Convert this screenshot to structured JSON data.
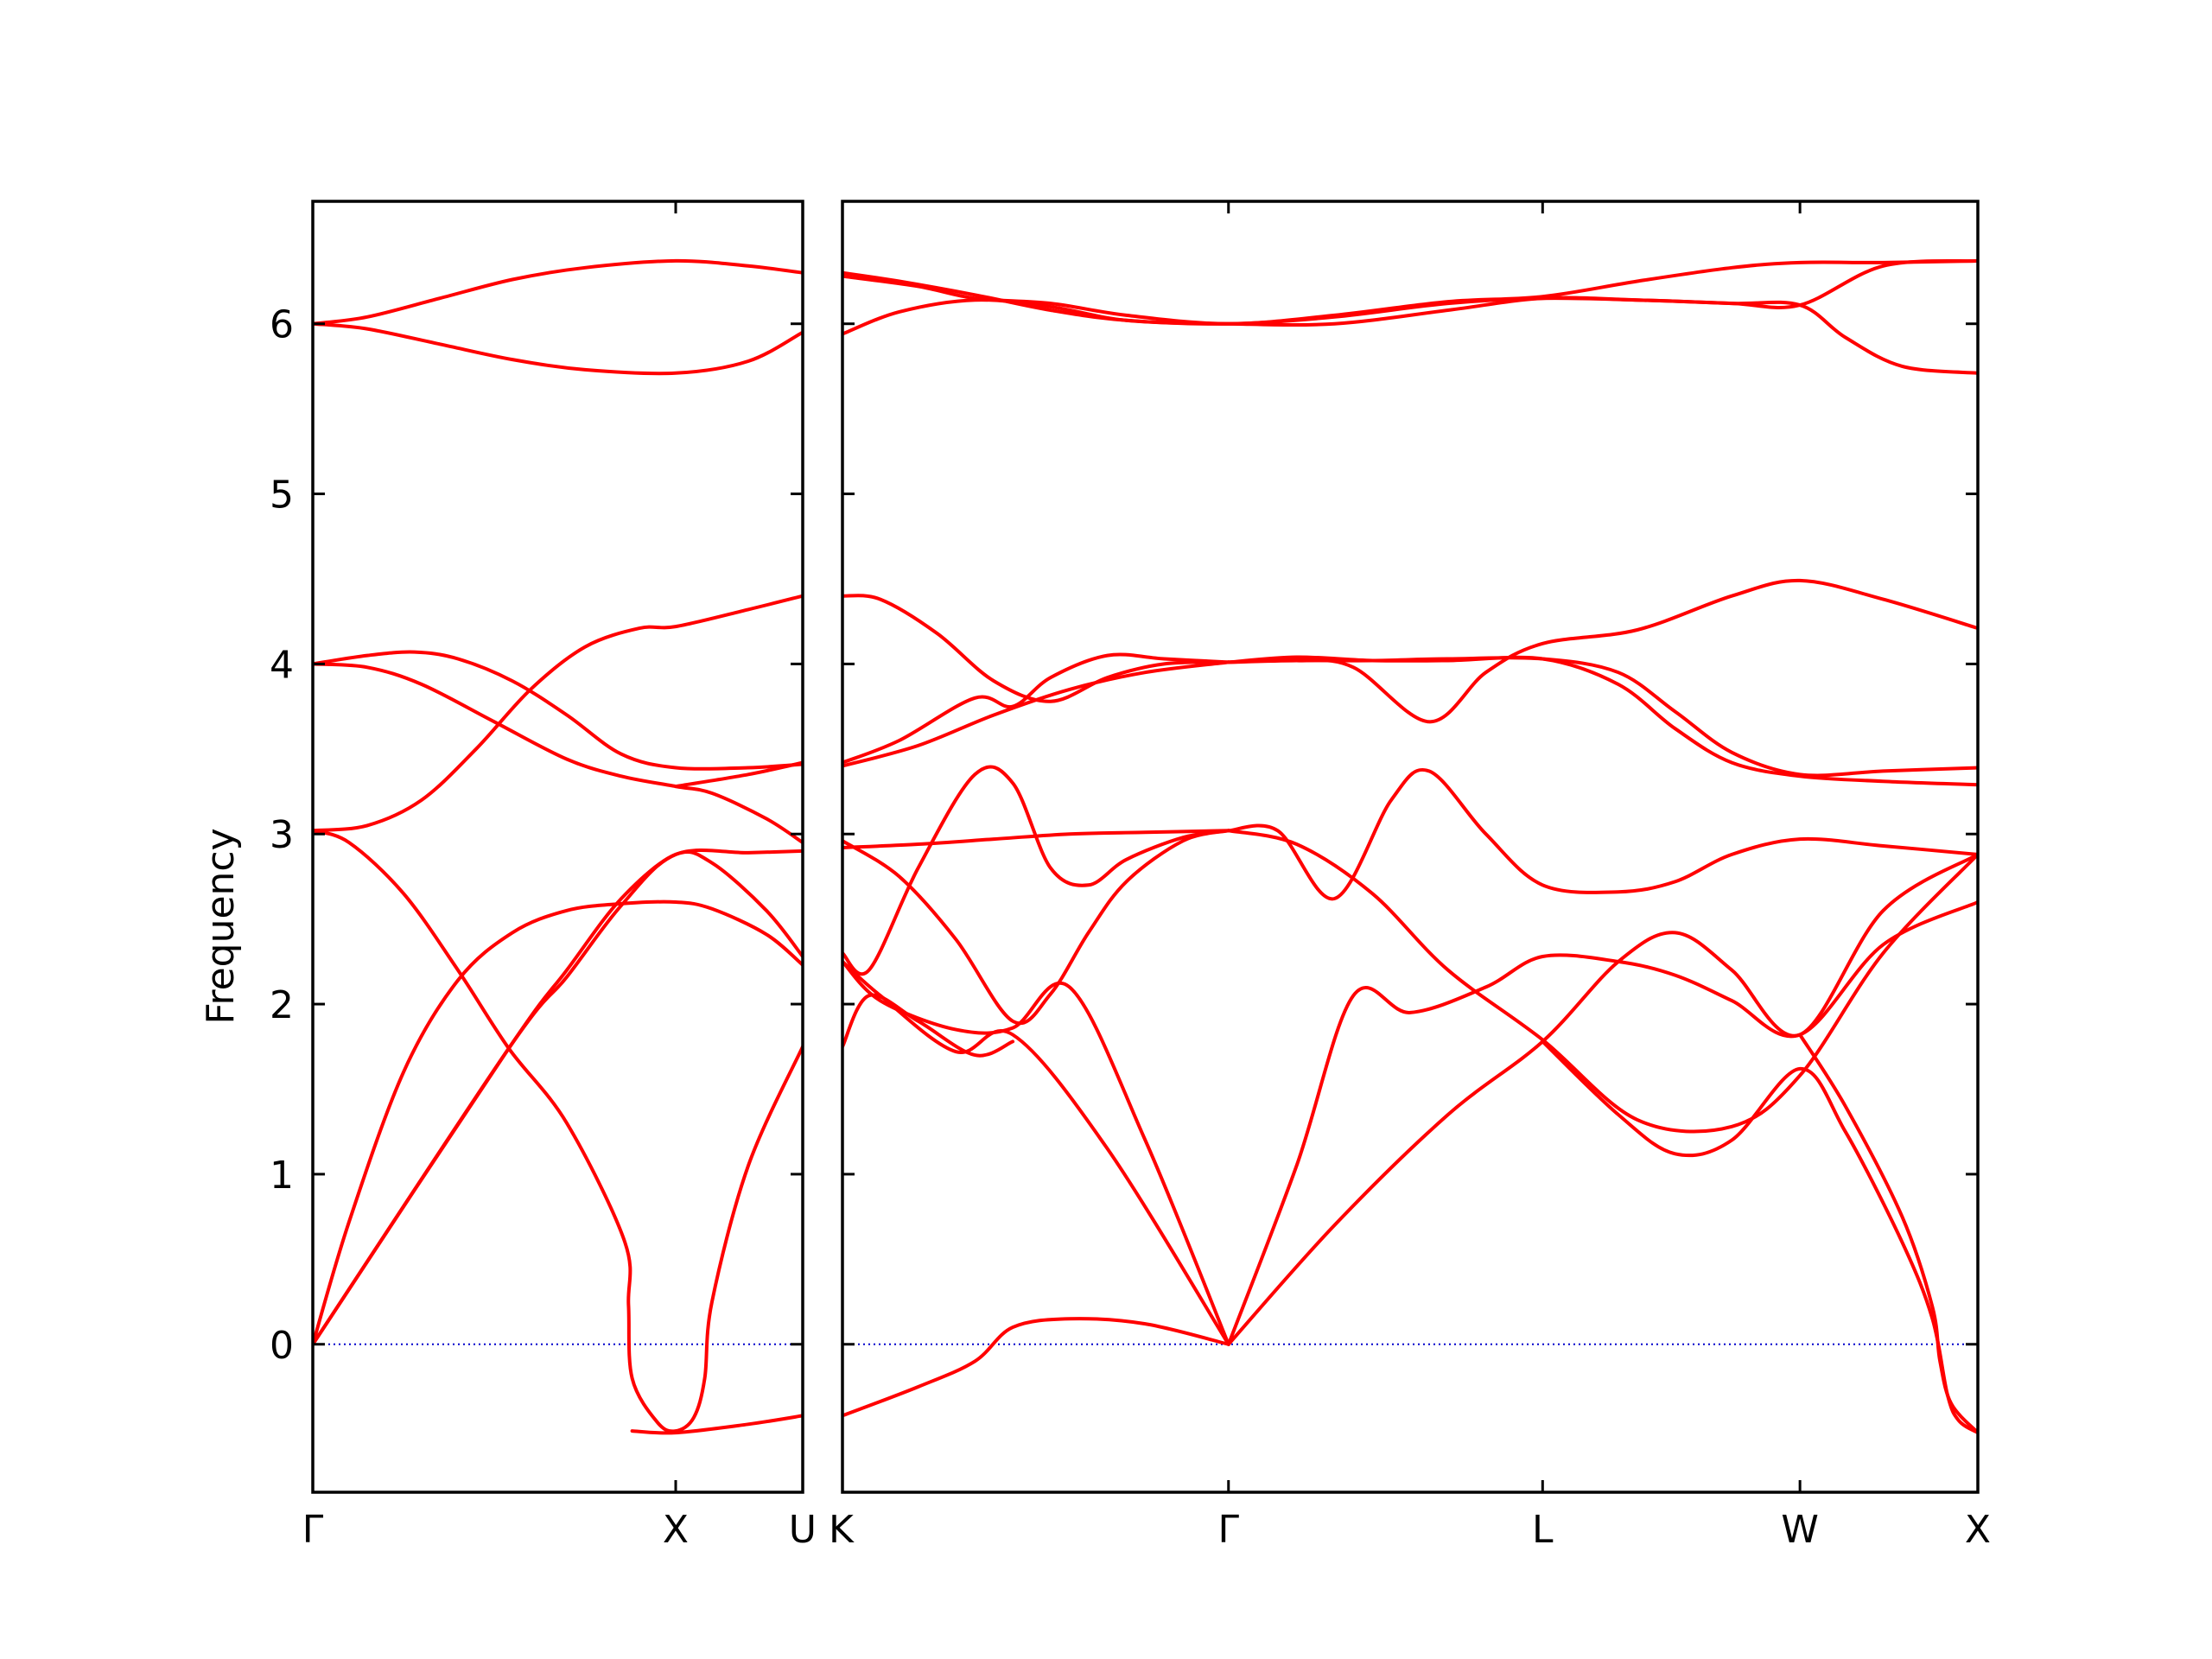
{
  "chart_data": {
    "type": "line",
    "ylabel": "Frequency",
    "ylim": [
      -0.87,
      6.72
    ],
    "yticks": [
      0,
      1,
      2,
      3,
      4,
      5,
      6
    ],
    "colors": {
      "band": "#ff0000",
      "zero_line": "#0000cc",
      "frame": "#000000"
    },
    "panels": [
      {
        "name": "left",
        "xlim": [
          0,
          1.35
        ],
        "ticks": [
          {
            "x": 0,
            "label": "Γ"
          },
          {
            "x": 1.0,
            "label": "X"
          },
          {
            "x": 1.35,
            "label": "U"
          }
        ],
        "series": [
          {
            "x": [
              0,
              0.15,
              0.35,
              0.55,
              0.75,
              1.0,
              1.2,
              1.35
            ],
            "y": [
              6.0,
              5.97,
              5.88,
              5.79,
              5.73,
              5.71,
              5.78,
              5.95
            ]
          },
          {
            "x": [
              0,
              0.15,
              0.35,
              0.55,
              0.75,
              1.0,
              1.2,
              1.35
            ],
            "y": [
              6.0,
              6.04,
              6.15,
              6.26,
              6.33,
              6.37,
              6.34,
              6.3
            ]
          },
          {
            "x": [
              0,
              0.15,
              0.28,
              0.4,
              0.55,
              0.7,
              0.85,
              1.0,
              1.2,
              1.35
            ],
            "y": [
              4.0,
              4.05,
              4.07,
              4.03,
              3.9,
              3.7,
              3.47,
              3.39,
              3.39,
              3.41
            ]
          },
          {
            "x": [
              0,
              0.15,
              0.3,
              0.5,
              0.7,
              0.85,
              1.0,
              1.1,
              1.25,
              1.35
            ],
            "y": [
              4.0,
              3.98,
              3.88,
              3.66,
              3.44,
              3.34,
              3.28,
              3.24,
              3.09,
              2.95
            ]
          },
          {
            "x": [
              0,
              0.15,
              0.3,
              0.45,
              0.6,
              0.75,
              0.9,
              1.0,
              1.2,
              1.35
            ],
            "y": [
              3.02,
              3.05,
              3.2,
              3.5,
              3.85,
              4.1,
              4.21,
              4.22,
              4.32,
              4.4
            ]
          },
          {
            "x": [
              0,
              0.1,
              0.25,
              0.4,
              0.54,
              0.7,
              0.86,
              0.87,
              0.88,
              0.95,
              1.0,
              1.05,
              1.08,
              1.1,
              1.2,
              1.35
            ],
            "y": [
              3.02,
              2.95,
              2.65,
              2.2,
              1.74,
              1.3,
              0.6,
              0.23,
              -0.2,
              -0.46,
              -0.51,
              -0.43,
              -0.2,
              0.25,
              1.05,
              1.75
            ]
          },
          {
            "x": [
              0,
              0.54,
              0.7,
              0.85,
              1.0,
              1.1,
              1.25,
              1.35
            ],
            "y": [
              0.0,
              1.74,
              2.2,
              2.62,
              2.88,
              2.83,
              2.55,
              2.28
            ]
          },
          {
            "x": [
              0,
              0.1,
              0.25,
              0.4,
              0.55,
              0.7,
              0.85,
              1.0,
              1.1,
              1.25,
              1.35
            ],
            "y": [
              0.0,
              0.72,
              1.6,
              2.14,
              2.42,
              2.55,
              2.59,
              2.6,
              2.56,
              2.41,
              2.23
            ]
          },
          {
            "x": [
              0,
              0.54,
              0.7,
              0.85,
              1.0,
              1.2,
              1.35
            ],
            "y": [
              0.0,
              1.74,
              2.16,
              2.58,
              2.88,
              2.89,
              2.9
            ]
          },
          {
            "x": [
              0.88,
              1.0,
              1.2,
              1.35
            ],
            "y": [
              -0.51,
              -0.52,
              -0.47,
              -0.42
            ]
          },
          {
            "x": [
              1.0,
              1.2,
              1.35
            ],
            "y": [
              3.28,
              3.35,
              3.42
            ]
          }
        ]
      },
      {
        "name": "right",
        "xlim": [
          0,
          3.0
        ],
        "ticks": [
          {
            "x": 0,
            "label": "K"
          },
          {
            "x": 1.02,
            "label": "Γ"
          },
          {
            "x": 1.85,
            "label": "L"
          },
          {
            "x": 2.53,
            "label": "W"
          },
          {
            "x": 3.0,
            "label": "X"
          }
        ],
        "series": [
          {
            "x": [
              0,
              0.15,
              0.35,
              0.55,
              0.75,
              1.02,
              1.3,
              1.6,
              1.85,
              2.1,
              2.35,
              2.53,
              2.75,
              3.0
            ],
            "y": [
              6.3,
              6.25,
              6.17,
              6.08,
              6.02,
              6.0,
              6.04,
              6.12,
              6.15,
              6.14,
              6.12,
              6.11,
              6.34,
              6.37
            ]
          },
          {
            "x": [
              0,
              0.2,
              0.35,
              0.55,
              0.75,
              1.02,
              1.3,
              1.6,
              1.85,
              2.1,
              2.35,
              2.53,
              2.75,
              3.0
            ],
            "y": [
              6.28,
              6.22,
              6.15,
              6.12,
              6.05,
              6.0,
              6.05,
              6.13,
              6.16,
              6.25,
              6.33,
              6.36,
              6.36,
              6.37
            ]
          },
          {
            "x": [
              0,
              0.15,
              0.35,
              0.55,
              0.75,
              1.02,
              1.3,
              1.6,
              1.85,
              2.1,
              2.35,
              2.53,
              2.65,
              2.8,
              3.0
            ],
            "y": [
              5.94,
              6.07,
              6.14,
              6.1,
              6.02,
              6.0,
              6.0,
              6.08,
              6.15,
              6.14,
              6.12,
              6.11,
              5.92,
              5.75,
              5.71
            ]
          },
          {
            "x": [
              0,
              0.1,
              0.25,
              0.4,
              0.55,
              0.7,
              0.85,
              1.02
            ],
            "y": [
              4.4,
              4.38,
              4.18,
              3.9,
              3.78,
              3.92,
              4.0,
              4.01
            ]
          },
          {
            "x": [
              0,
              0.15,
              0.35,
              0.45,
              0.55,
              0.7,
              0.85,
              1.02
            ],
            "y": [
              3.42,
              3.55,
              3.8,
              3.75,
              3.92,
              4.05,
              4.03,
              4.01
            ]
          },
          {
            "x": [
              0,
              0.2,
              0.4,
              0.6,
              0.8,
              1.02
            ],
            "y": [
              3.4,
              3.52,
              3.7,
              3.85,
              3.95,
              4.01
            ]
          },
          {
            "x": [
              1.02,
              1.2,
              1.35,
              1.55,
              1.7,
              1.85,
              2.1,
              2.35,
              2.53,
              2.75,
              3.0
            ],
            "y": [
              4.01,
              4.02,
              3.98,
              3.66,
              3.95,
              4.12,
              4.2,
              4.4,
              4.49,
              4.38,
              4.21
            ]
          },
          {
            "x": [
              1.02,
              1.2,
              1.4,
              1.6,
              1.85,
              2.05,
              2.2,
              2.35,
              2.53,
              2.75,
              3.0
            ],
            "y": [
              4.01,
              4.04,
              4.02,
              4.02,
              4.03,
              3.88,
              3.62,
              3.42,
              3.34,
              3.31,
              3.29
            ]
          },
          {
            "x": [
              1.02,
              1.2,
              1.4,
              1.6,
              1.85,
              2.05,
              2.2,
              2.35,
              2.53,
              2.75,
              3.0
            ],
            "y": [
              4.01,
              4.02,
              4.02,
              4.03,
              4.03,
              3.95,
              3.72,
              3.48,
              3.35,
              3.37,
              3.39
            ]
          },
          {
            "x": [
              0,
              0.2,
              0.4,
              0.6,
              0.8,
              1.02
            ],
            "y": [
              2.92,
              2.94,
              2.97,
              3.0,
              3.01,
              3.02
            ]
          },
          {
            "x": [
              0,
              0.07,
              0.2,
              0.35,
              0.45,
              0.55,
              0.65,
              0.75,
              0.9,
              1.02
            ],
            "y": [
              2.3,
              2.2,
              2.8,
              3.35,
              3.3,
              2.8,
              2.7,
              2.85,
              2.98,
              3.02
            ]
          },
          {
            "x": [
              0,
              0.15,
              0.3,
              0.45,
              0.55,
              0.65,
              0.75,
              0.9,
              1.02
            ],
            "y": [
              2.96,
              2.75,
              2.38,
              1.9,
              2.06,
              2.42,
              2.72,
              2.96,
              3.02
            ]
          },
          {
            "x": [
              1.02,
              1.15,
              1.3,
              1.45,
              1.55,
              1.7,
              1.85,
              2.05,
              2.2,
              2.35,
              2.53,
              2.75,
              3.0
            ],
            "y": [
              3.02,
              3.02,
              2.62,
              3.2,
              3.37,
              3.0,
              2.7,
              2.66,
              2.72,
              2.88,
              2.97,
              2.93,
              2.88
            ]
          },
          {
            "x": [
              1.02,
              1.2,
              1.4,
              1.6,
              1.85,
              2.1,
              2.35,
              2.53,
              2.75,
              3.0
            ],
            "y": [
              3.02,
              2.94,
              2.65,
              2.2,
              1.79,
              1.32,
              1.28,
              1.58,
              2.3,
              2.88
            ]
          },
          {
            "x": [
              0,
              0.1,
              0.3,
              0.45,
              0.6,
              0.8,
              1.02
            ],
            "y": [
              2.25,
              2.02,
              1.85,
              1.86,
              2.1,
              1.2,
              0.0
            ]
          },
          {
            "x": [
              0,
              0.1,
              0.3,
              0.45,
              0.7,
              1.02
            ],
            "y": [
              2.25,
              2.05,
              1.72,
              1.82,
              1.15,
              0.0
            ]
          },
          {
            "x": [
              1.02,
              1.2,
              1.35,
              1.5,
              1.7,
              1.85,
              2.05,
              2.2,
              2.35,
              2.53,
              2.75,
              3.0
            ],
            "y": [
              0.0,
              1.05,
              2.05,
              1.95,
              2.1,
              2.28,
              2.25,
              2.17,
              2.02,
              1.82,
              2.35,
              2.6
            ]
          },
          {
            "x": [
              1.02,
              1.3,
              1.6,
              1.85,
              2.05,
              2.2,
              2.35,
              2.53,
              2.75,
              3.0
            ],
            "y": [
              0.0,
              0.7,
              1.35,
              1.78,
              2.25,
              2.42,
              2.2,
              1.82,
              2.55,
              2.88
            ]
          },
          {
            "x": [
              1.85,
              2.05,
              2.2,
              2.35,
              2.53,
              2.65,
              2.8,
              2.88,
              2.92,
              2.95,
              3.0
            ],
            "y": [
              1.78,
              1.35,
              1.12,
              1.2,
              1.62,
              1.25,
              0.6,
              0.15,
              -0.3,
              -0.45,
              -0.52
            ]
          },
          {
            "x": [
              2.53,
              2.65,
              2.8,
              2.88,
              2.9,
              2.93,
              3.0
            ],
            "y": [
              1.82,
              1.4,
              0.75,
              0.22,
              -0.1,
              -0.35,
              -0.52
            ]
          },
          {
            "x": [
              0,
              0.2,
              0.35,
              0.45,
              0.6,
              0.8,
              1.02
            ],
            "y": [
              -0.42,
              -0.25,
              -0.1,
              0.1,
              0.15,
              0.12,
              0.0
            ]
          },
          {
            "x": [
              0,
              0.07,
              0.2,
              0.35,
              0.45
            ],
            "y": [
              1.75,
              2.05,
              1.9,
              1.7,
              1.78
            ]
          }
        ]
      }
    ]
  }
}
